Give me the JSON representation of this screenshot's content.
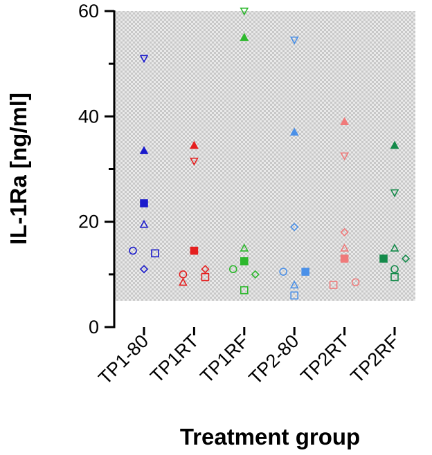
{
  "chart_data": {
    "type": "scatter",
    "title": "",
    "xlabel": "Treatment group",
    "ylabel": "IL-1Ra [ng/ml]",
    "ylim": [
      0,
      60
    ],
    "yticks": [
      0,
      20,
      40,
      60
    ],
    "shaded_band": {
      "from": 5,
      "to": 60
    },
    "categories": [
      "TP1-80",
      "TP1RT",
      "TP1RF",
      "TP2-80",
      "TP2RT",
      "TP2RF"
    ],
    "colors": {
      "TP1-80": "#1a1acc",
      "TP1RT": "#e51f1f",
      "TP1RF": "#2db82d",
      "TP2-80": "#4a90e8",
      "TP2RT": "#f07a7a",
      "TP2RF": "#148a4a"
    },
    "points": [
      {
        "group": "TP1-80",
        "marker": "triangle-down-open",
        "offset": 0,
        "value": 51
      },
      {
        "group": "TP1-80",
        "marker": "triangle-filled",
        "offset": 0,
        "value": 33.5
      },
      {
        "group": "TP1-80",
        "marker": "square-filled",
        "offset": 0,
        "value": 23.5
      },
      {
        "group": "TP1-80",
        "marker": "triangle-open",
        "offset": 0,
        "value": 19.5
      },
      {
        "group": "TP1-80",
        "marker": "circle-open",
        "offset": -1,
        "value": 14.5
      },
      {
        "group": "TP1-80",
        "marker": "square-open",
        "offset": 1,
        "value": 14
      },
      {
        "group": "TP1-80",
        "marker": "diamond-open",
        "offset": 0,
        "value": 11
      },
      {
        "group": "TP1RT",
        "marker": "triangle-filled",
        "offset": 0,
        "value": 34.5
      },
      {
        "group": "TP1RT",
        "marker": "triangle-down-open",
        "offset": 0,
        "value": 31.5
      },
      {
        "group": "TP1RT",
        "marker": "square-filled",
        "offset": 0,
        "value": 14.5
      },
      {
        "group": "TP1RT",
        "marker": "diamond-open",
        "offset": 1,
        "value": 11
      },
      {
        "group": "TP1RT",
        "marker": "circle-open",
        "offset": -1,
        "value": 10
      },
      {
        "group": "TP1RT",
        "marker": "square-open",
        "offset": 1,
        "value": 9.5
      },
      {
        "group": "TP1RT",
        "marker": "triangle-open",
        "offset": -1,
        "value": 8.5
      },
      {
        "group": "TP1RF",
        "marker": "triangle-down-open",
        "offset": 0,
        "value": 60
      },
      {
        "group": "TP1RF",
        "marker": "triangle-filled",
        "offset": 0,
        "value": 55
      },
      {
        "group": "TP1RF",
        "marker": "triangle-open",
        "offset": 0,
        "value": 15
      },
      {
        "group": "TP1RF",
        "marker": "square-filled",
        "offset": 0,
        "value": 12.5
      },
      {
        "group": "TP1RF",
        "marker": "circle-open",
        "offset": -1,
        "value": 11
      },
      {
        "group": "TP1RF",
        "marker": "diamond-open",
        "offset": 1,
        "value": 10
      },
      {
        "group": "TP1RF",
        "marker": "square-open",
        "offset": 0,
        "value": 7
      },
      {
        "group": "TP2-80",
        "marker": "triangle-down-open",
        "offset": 0,
        "value": 54.5
      },
      {
        "group": "TP2-80",
        "marker": "triangle-filled",
        "offset": 0,
        "value": 37
      },
      {
        "group": "TP2-80",
        "marker": "diamond-open",
        "offset": 0,
        "value": 19
      },
      {
        "group": "TP2-80",
        "marker": "square-filled",
        "offset": 1,
        "value": 10.5
      },
      {
        "group": "TP2-80",
        "marker": "circle-open",
        "offset": -1,
        "value": 10.5
      },
      {
        "group": "TP2-80",
        "marker": "triangle-open",
        "offset": 0,
        "value": 8
      },
      {
        "group": "TP2-80",
        "marker": "square-open",
        "offset": 0,
        "value": 6
      },
      {
        "group": "TP2RT",
        "marker": "triangle-filled",
        "offset": 0,
        "value": 39
      },
      {
        "group": "TP2RT",
        "marker": "triangle-down-open",
        "offset": 0,
        "value": 32.5
      },
      {
        "group": "TP2RT",
        "marker": "diamond-open",
        "offset": 0,
        "value": 18
      },
      {
        "group": "TP2RT",
        "marker": "triangle-open",
        "offset": 0,
        "value": 15
      },
      {
        "group": "TP2RT",
        "marker": "square-filled",
        "offset": 0,
        "value": 13
      },
      {
        "group": "TP2RT",
        "marker": "circle-open",
        "offset": 1,
        "value": 8.5
      },
      {
        "group": "TP2RT",
        "marker": "square-open",
        "offset": -1,
        "value": 8
      },
      {
        "group": "TP2RF",
        "marker": "triangle-filled",
        "offset": 0,
        "value": 34.5
      },
      {
        "group": "TP2RF",
        "marker": "triangle-down-open",
        "offset": 0,
        "value": 25.5
      },
      {
        "group": "TP2RF",
        "marker": "triangle-open",
        "offset": 0,
        "value": 15
      },
      {
        "group": "TP2RF",
        "marker": "diamond-open",
        "offset": 1,
        "value": 13
      },
      {
        "group": "TP2RF",
        "marker": "square-filled",
        "offset": -1,
        "value": 13
      },
      {
        "group": "TP2RF",
        "marker": "circle-open",
        "offset": 0,
        "value": 11
      },
      {
        "group": "TP2RF",
        "marker": "square-open",
        "offset": 0,
        "value": 9.5
      }
    ]
  }
}
